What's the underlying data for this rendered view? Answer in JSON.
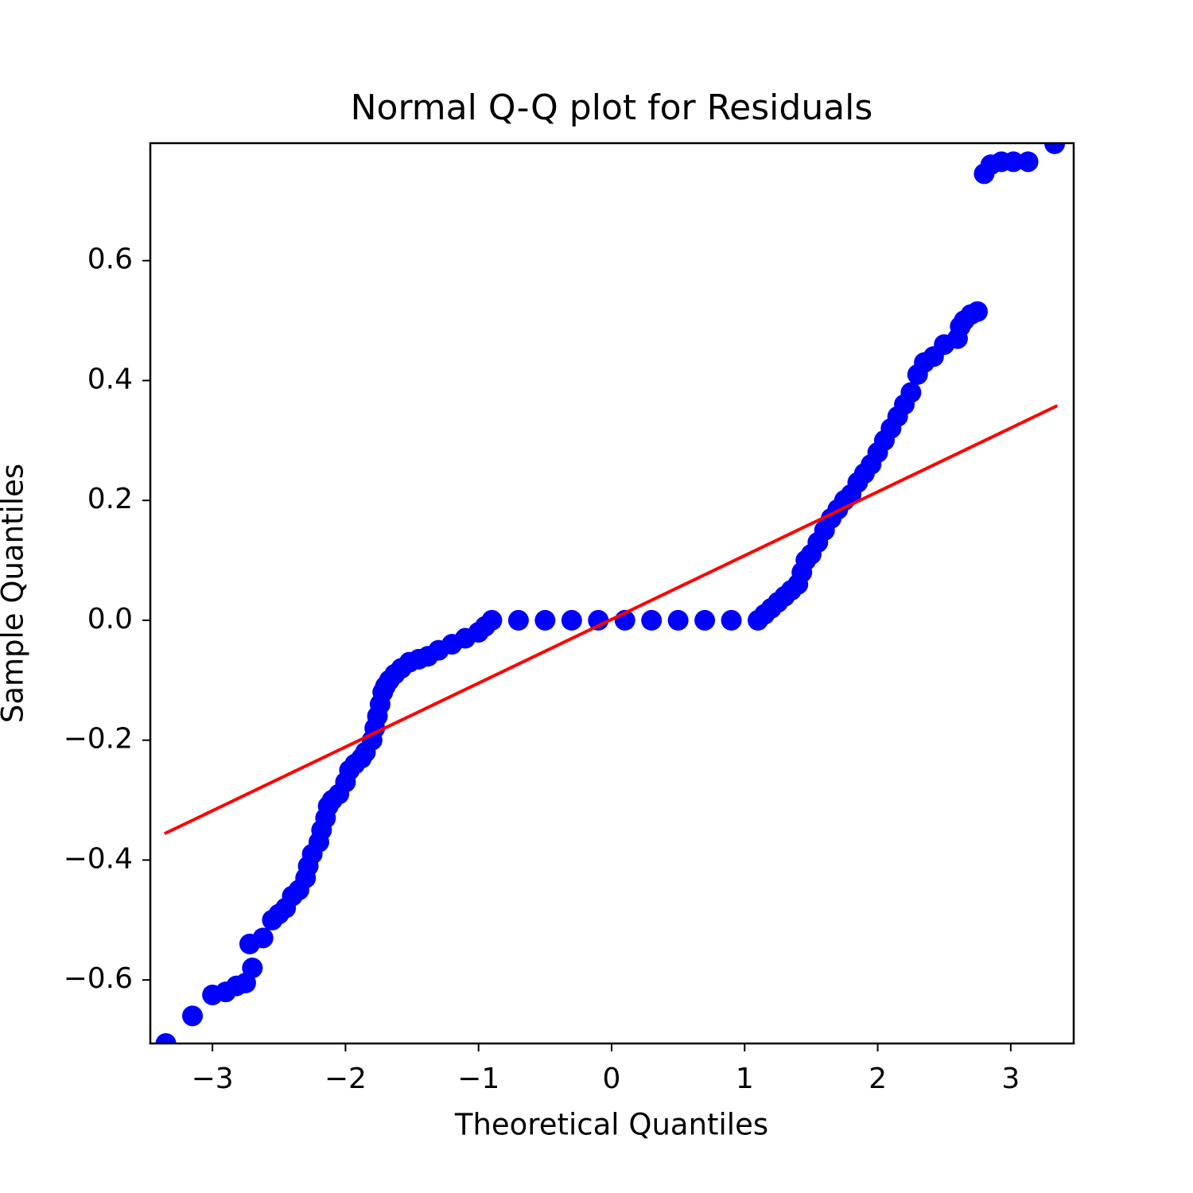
{
  "chart_data": {
    "type": "scatter",
    "title": "Normal Q-Q plot for Residuals",
    "x_label": "Theoretical Quantiles",
    "y_label": "Sample Quantiles",
    "color": "#0000ff",
    "x": [
      -3.35,
      -3.15,
      -3.0,
      -2.9,
      -2.82,
      -2.75,
      -2.7,
      -2.72,
      -2.62,
      -2.55,
      -2.5,
      -2.45,
      -2.4,
      -2.35,
      -2.3,
      -2.28,
      -2.25,
      -2.2,
      -2.18,
      -2.15,
      -2.13,
      -2.1,
      -2.05,
      -2.0,
      -1.97,
      -1.93,
      -1.88,
      -1.85,
      -1.8,
      -1.78,
      -1.76,
      -1.74,
      -1.72,
      -1.7,
      -1.67,
      -1.63,
      -1.58,
      -1.52,
      -1.45,
      -1.38,
      -1.3,
      -1.2,
      -1.1,
      -1.0,
      -0.95,
      -0.9,
      -0.7,
      -0.5,
      -0.3,
      -0.1,
      0.1,
      0.3,
      0.5,
      0.7,
      0.9,
      1.1,
      1.15,
      1.2,
      1.25,
      1.3,
      1.35,
      1.4,
      1.43,
      1.46,
      1.5,
      1.55,
      1.6,
      1.65,
      1.7,
      1.75,
      1.8,
      1.85,
      1.9,
      1.95,
      2.0,
      2.05,
      2.1,
      2.15,
      2.2,
      2.25,
      2.3,
      2.35,
      2.42,
      2.5,
      2.6,
      2.62,
      2.65,
      2.7,
      2.75,
      2.8,
      2.85,
      2.93,
      3.02,
      3.13,
      3.33
    ],
    "y": [
      -0.706,
      -0.66,
      -0.625,
      -0.62,
      -0.61,
      -0.605,
      -0.58,
      -0.54,
      -0.53,
      -0.5,
      -0.49,
      -0.48,
      -0.46,
      -0.45,
      -0.43,
      -0.41,
      -0.39,
      -0.37,
      -0.35,
      -0.33,
      -0.31,
      -0.3,
      -0.29,
      -0.27,
      -0.25,
      -0.24,
      -0.23,
      -0.22,
      -0.2,
      -0.18,
      -0.16,
      -0.14,
      -0.12,
      -0.11,
      -0.1,
      -0.09,
      -0.08,
      -0.07,
      -0.065,
      -0.06,
      -0.05,
      -0.04,
      -0.03,
      -0.02,
      -0.01,
      0,
      0,
      0,
      0,
      0,
      0,
      0,
      0,
      0,
      0,
      0,
      0.01,
      0.02,
      0.03,
      0.04,
      0.05,
      0.06,
      0.08,
      0.1,
      0.11,
      0.13,
      0.15,
      0.17,
      0.185,
      0.2,
      0.21,
      0.23,
      0.245,
      0.26,
      0.28,
      0.3,
      0.32,
      0.34,
      0.36,
      0.38,
      0.41,
      0.43,
      0.44,
      0.46,
      0.47,
      0.49,
      0.5,
      0.51,
      0.515,
      0.745,
      0.76,
      0.765,
      0.765,
      0.765,
      0.795
    ],
    "line": {
      "color": "#ff0000",
      "x": [
        -3.36,
        3.35
      ],
      "y": [
        -0.356,
        0.358
      ]
    },
    "xlim": [
      -3.467,
      3.473
    ],
    "ylim": [
      -0.706,
      0.796
    ],
    "xticks": [
      {
        "value": -3,
        "label": "−3"
      },
      {
        "value": -2,
        "label": "−2"
      },
      {
        "value": -1,
        "label": "−1"
      },
      0,
      1,
      2,
      3
    ],
    "yticks": [
      {
        "value": -0.6,
        "label": "−0.6"
      },
      {
        "value": -0.4,
        "label": "−0.4"
      },
      {
        "value": -0.2,
        "label": "−0.2"
      },
      {
        "value": 0,
        "label": "0.0"
      },
      0.2,
      0.4,
      0.6
    ]
  }
}
